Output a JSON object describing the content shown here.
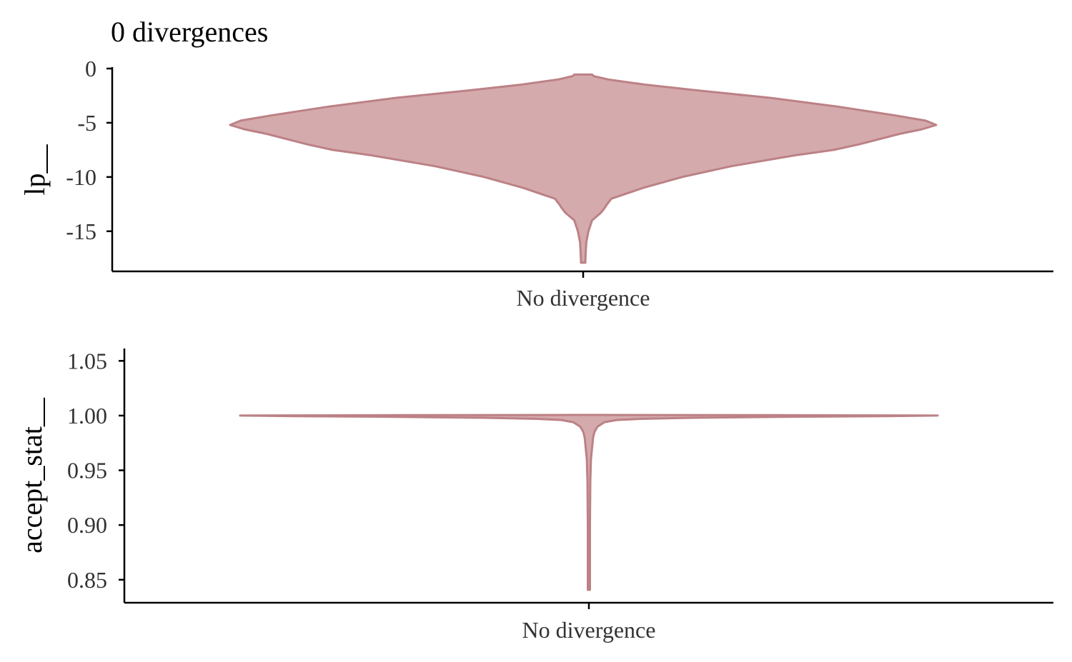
{
  "chart_data": {
    "type": "violin",
    "title": "0 divergences",
    "colors": {
      "fill": "#d4aaad",
      "outline": "#bc8185"
    },
    "panels": [
      {
        "ylabel": "lp__",
        "xlabel": "",
        "categories": [
          "No divergence"
        ],
        "yticks": [
          0,
          -5,
          -10,
          -15
        ],
        "ytick_labels": [
          "0",
          "-5",
          "-10",
          "-15"
        ],
        "ylim": [
          -18.7,
          0
        ],
        "density": [
          [
            -17.9,
            0.006
          ],
          [
            -17.0,
            0.007
          ],
          [
            -16.0,
            0.009
          ],
          [
            -15.0,
            0.015
          ],
          [
            -14.0,
            0.025
          ],
          [
            -13.3,
            0.05
          ],
          [
            -12.9,
            0.06
          ],
          [
            -12.5,
            0.068
          ],
          [
            -12.0,
            0.08
          ],
          [
            -11.0,
            0.17
          ],
          [
            -10.0,
            0.28
          ],
          [
            -9.0,
            0.42
          ],
          [
            -8.0,
            0.6
          ],
          [
            -7.5,
            0.71
          ],
          [
            -7.0,
            0.78
          ],
          [
            -6.5,
            0.84
          ],
          [
            -6.0,
            0.9
          ],
          [
            -5.6,
            0.96
          ],
          [
            -5.2,
            1.0
          ],
          [
            -4.8,
            0.97
          ],
          [
            -4.3,
            0.88
          ],
          [
            -3.5,
            0.72
          ],
          [
            -2.7,
            0.53
          ],
          [
            -2.0,
            0.32
          ],
          [
            -1.5,
            0.18
          ],
          [
            -1.0,
            0.07
          ],
          [
            -0.7,
            0.03
          ],
          [
            -0.55,
            0.025
          ]
        ]
      },
      {
        "ylabel": "accept_stat__",
        "xlabel": "",
        "categories": [
          "No divergence"
        ],
        "yticks": [
          1.05,
          1.0,
          0.95,
          0.9,
          0.85
        ],
        "ytick_labels": [
          "1.05",
          "1.00",
          "0.95",
          "0.90",
          "0.85"
        ],
        "ylim": [
          0.829,
          1.06
        ],
        "density": [
          [
            0.8408,
            0.003
          ],
          [
            0.85,
            0.003
          ],
          [
            0.9,
            0.003
          ],
          [
            0.94,
            0.004
          ],
          [
            0.96,
            0.006
          ],
          [
            0.97,
            0.009
          ],
          [
            0.98,
            0.012
          ],
          [
            0.985,
            0.016
          ],
          [
            0.99,
            0.025
          ],
          [
            0.994,
            0.045
          ],
          [
            0.996,
            0.08
          ],
          [
            0.997,
            0.15
          ],
          [
            0.998,
            0.3
          ],
          [
            0.999,
            0.6
          ],
          [
            0.9995,
            0.85
          ],
          [
            1.0,
            1.0
          ],
          [
            1.0004,
            0.5
          ],
          [
            1.0006,
            0.02
          ]
        ]
      }
    ]
  }
}
